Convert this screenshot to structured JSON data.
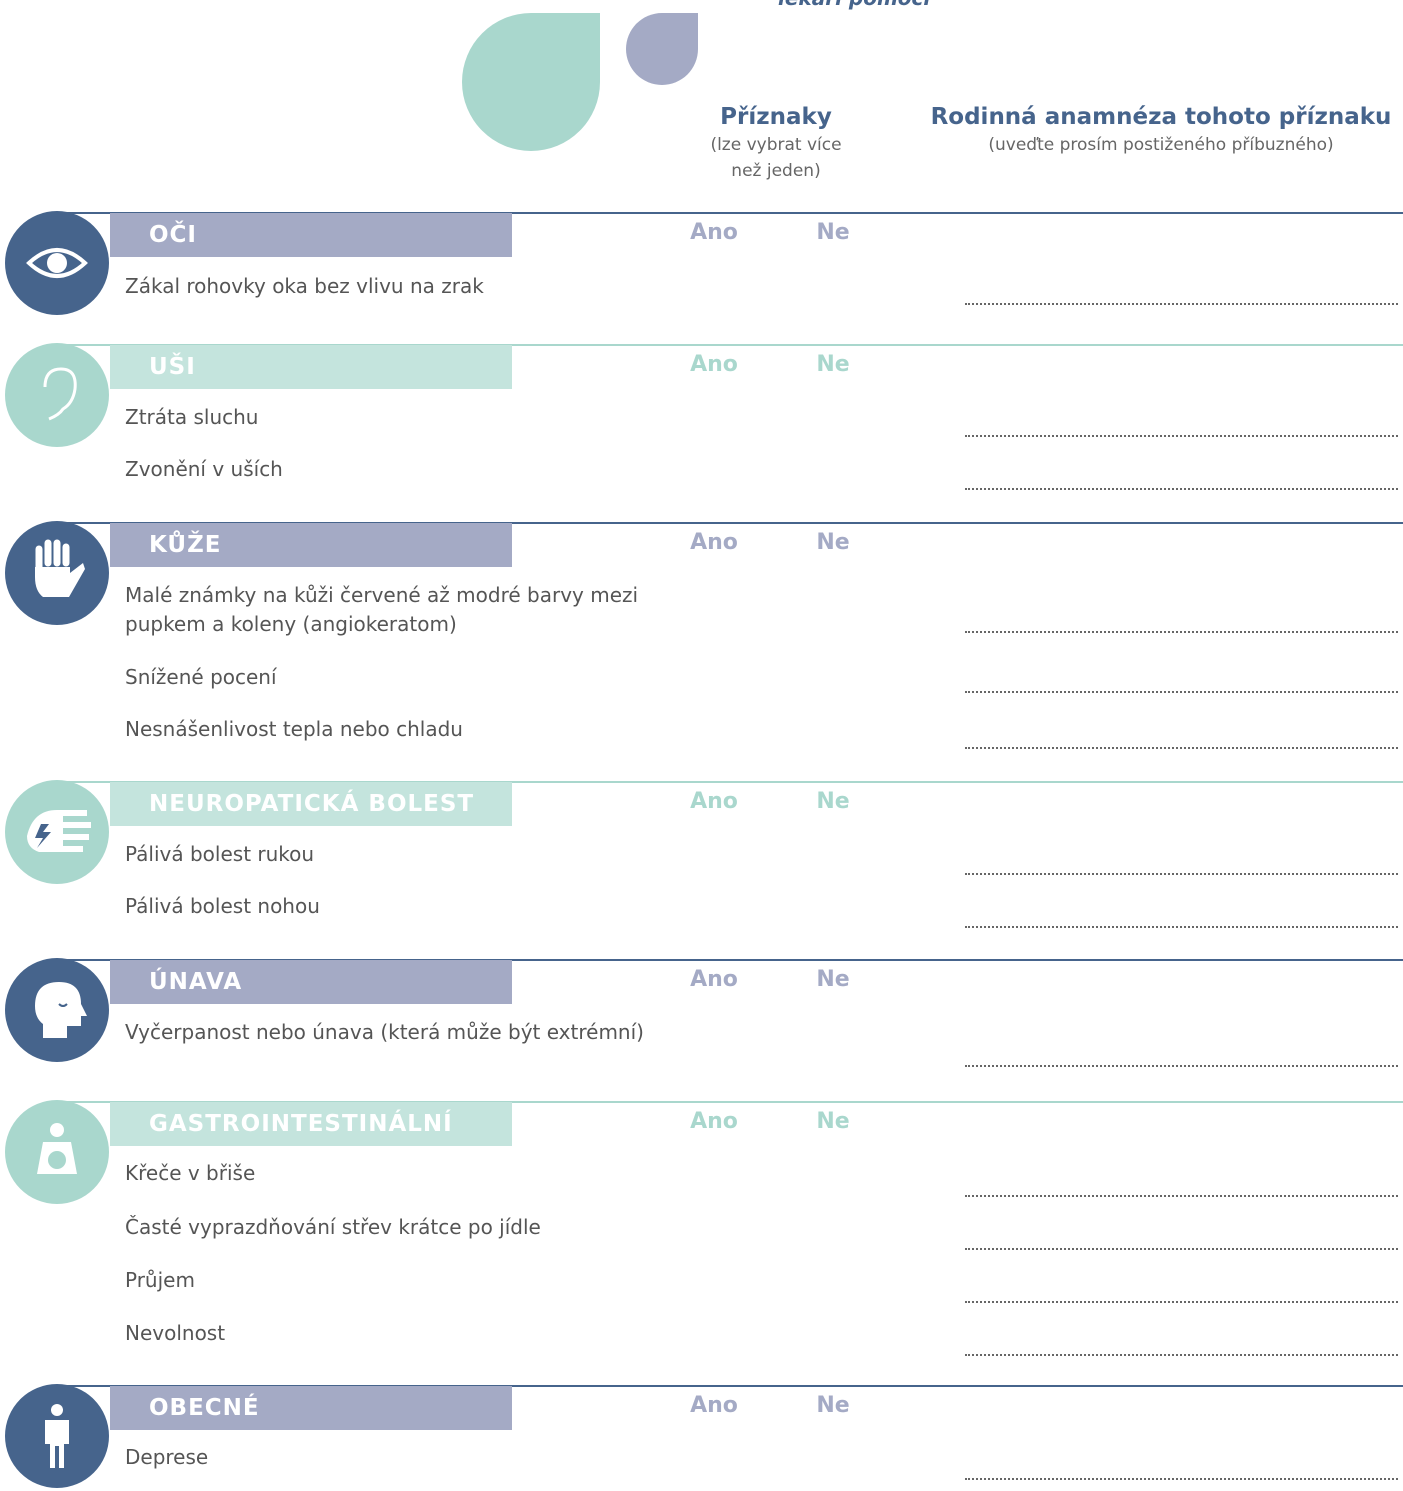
{
  "top_text": "lékaři pomoci",
  "header": {
    "symptoms_title": "Příznaky",
    "symptoms_note": "(lze vybrat více než jeden)",
    "family_title": "Rodinná anamnéza tohoto příznaku",
    "family_note": "(uveďte prosím postiženého příbuzného)"
  },
  "sections": [
    {
      "title": "OČI",
      "color": "#46648c",
      "accent": "#a4aac5",
      "yes": "Ano",
      "no": "Ne",
      "items": [
        "Zákal rohovky oka bez vlivu na zrak"
      ]
    },
    {
      "title": "UŠI",
      "color": "#a9d7cd",
      "accent": "#c4e4dd",
      "yes": "Ano",
      "no": "Ne",
      "items": [
        "Ztráta sluchu",
        "Zvonění v uších"
      ]
    },
    {
      "title": "KŮŽE",
      "color": "#46648c",
      "accent": "#a4aac5",
      "yes": "Ano",
      "no": "Ne",
      "items": [
        "Malé známky na kůži červené až modré barvy mezi pupkem a koleny (angiokeratom)",
        "Snížené pocení",
        "Nesnášenlivost tepla nebo chladu"
      ]
    },
    {
      "title": "NEUROPATICKÁ BOLEST",
      "color": "#a9d7cd",
      "accent": "#c4e4dd",
      "yes": "Ano",
      "no": "Ne",
      "items": [
        "Pálivá bolest rukou",
        "Pálivá bolest nohou"
      ]
    },
    {
      "title": "ÚNAVA",
      "color": "#46648c",
      "accent": "#a4aac5",
      "yes": "Ano",
      "no": "Ne",
      "items": [
        "Vyčerpanost nebo únava (která může být extrémní)"
      ]
    },
    {
      "title": "GASTROINTESTINÁLNÍ",
      "color": "#a9d7cd",
      "accent": "#c4e4dd",
      "yes": "Ano",
      "no": "Ne",
      "items": [
        "Křeče v břiše",
        "Časté vyprazdňování střev krátce po jídle",
        "Průjem",
        "Nevolnost"
      ]
    },
    {
      "title": "OBECNÉ",
      "color": "#46648c",
      "accent": "#a4aac5",
      "yes": "Ano",
      "no": "Ne",
      "items": [
        "Deprese"
      ]
    }
  ]
}
